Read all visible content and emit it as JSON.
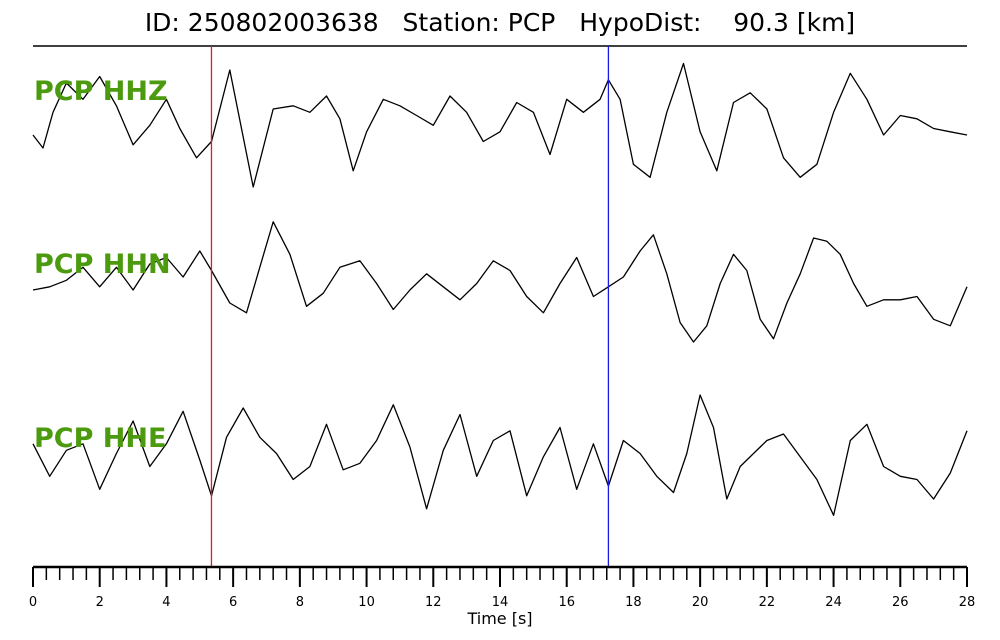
{
  "title": {
    "id": "ID: 250802003638",
    "station": "Station: PCP",
    "hypodist": "HypoDist:    90.3 [km]"
  },
  "chart_data": {
    "type": "line",
    "title": "ID: 250802003638   Station: PCP   HypoDist:    90.3 [km]",
    "xlabel": "Time [s]",
    "ylabel": "",
    "xlim": [
      0,
      28
    ],
    "x_ticks": [
      0,
      2,
      4,
      6,
      8,
      10,
      12,
      14,
      16,
      18,
      20,
      22,
      24,
      26,
      28
    ],
    "minor_tick_step": 0.4,
    "grid": false,
    "label_color": "#4c9a0e",
    "markers": [
      {
        "time": 5.35,
        "color": "#e31a1c"
      },
      {
        "time": 17.25,
        "color": "#1a1ae3"
      }
    ],
    "series": [
      {
        "name": "PCP HHZ",
        "x": [
          0,
          0.3,
          0.6,
          1.0,
          1.5,
          2.0,
          2.5,
          3.0,
          3.5,
          4.0,
          4.4,
          4.9,
          5.35,
          5.9,
          6.6,
          7.2,
          7.8,
          8.3,
          8.8,
          9.2,
          9.6,
          10.0,
          10.5,
          11.0,
          11.5,
          12.0,
          12.5,
          13.0,
          13.5,
          14.0,
          14.5,
          15.0,
          15.5,
          16.0,
          16.5,
          17.0,
          17.25,
          17.6,
          18.0,
          18.5,
          19.0,
          19.5,
          20.0,
          20.5,
          21.0,
          21.5,
          22.0,
          22.5,
          23.0,
          23.5,
          24.0,
          24.5,
          25.0,
          25.5,
          26.0,
          26.5,
          27.0,
          27.5,
          28.0
        ],
        "y": [
          0.0,
          -0.2,
          0.35,
          0.8,
          0.55,
          0.9,
          0.45,
          -0.15,
          0.15,
          0.55,
          0.1,
          -0.35,
          -0.1,
          1.0,
          -0.8,
          0.4,
          0.45,
          0.35,
          0.6,
          0.25,
          -0.55,
          0.05,
          0.55,
          0.45,
          0.3,
          0.15,
          0.6,
          0.35,
          -0.1,
          0.05,
          0.5,
          0.35,
          -0.3,
          0.55,
          0.35,
          0.55,
          0.85,
          0.55,
          -0.45,
          -0.65,
          0.35,
          1.1,
          0.05,
          -0.55,
          0.5,
          0.65,
          0.4,
          -0.35,
          -0.65,
          -0.45,
          0.35,
          0.95,
          0.55,
          0.0,
          0.3,
          0.25,
          0.1,
          0.05,
          0.0
        ]
      },
      {
        "name": "PCP HHN",
        "x": [
          0,
          0.5,
          1.0,
          1.5,
          2.0,
          2.5,
          3.0,
          3.5,
          4.0,
          4.5,
          5.0,
          5.35,
          5.9,
          6.4,
          6.8,
          7.2,
          7.7,
          8.2,
          8.7,
          9.2,
          9.8,
          10.3,
          10.8,
          11.3,
          11.8,
          12.3,
          12.8,
          13.3,
          13.8,
          14.3,
          14.8,
          15.3,
          15.8,
          16.3,
          16.8,
          17.25,
          17.7,
          18.2,
          18.6,
          19.0,
          19.4,
          19.8,
          20.2,
          20.6,
          21.0,
          21.4,
          21.8,
          22.2,
          22.6,
          23.0,
          23.4,
          23.8,
          24.2,
          24.6,
          25.0,
          25.5,
          26.0,
          26.5,
          27.0,
          27.5,
          28.0
        ],
        "y": [
          0.0,
          0.05,
          0.15,
          0.35,
          0.05,
          0.35,
          0.0,
          0.4,
          0.5,
          0.2,
          0.6,
          0.3,
          -0.2,
          -0.35,
          0.35,
          1.05,
          0.55,
          -0.25,
          -0.05,
          0.35,
          0.45,
          0.1,
          -0.3,
          0.0,
          0.25,
          0.05,
          -0.15,
          0.1,
          0.45,
          0.3,
          -0.1,
          -0.35,
          0.1,
          0.5,
          -0.1,
          0.05,
          0.2,
          0.6,
          0.85,
          0.25,
          -0.5,
          -0.8,
          -0.55,
          0.1,
          0.55,
          0.3,
          -0.45,
          -0.75,
          -0.2,
          0.25,
          0.8,
          0.75,
          0.55,
          0.1,
          -0.25,
          -0.15,
          -0.15,
          -0.1,
          -0.45,
          -0.55,
          0.05
        ]
      },
      {
        "name": "PCP HHE",
        "x": [
          0,
          0.5,
          1.0,
          1.5,
          2.0,
          2.5,
          3.0,
          3.5,
          4.0,
          4.5,
          5.0,
          5.35,
          5.8,
          6.3,
          6.8,
          7.3,
          7.8,
          8.3,
          8.8,
          9.3,
          9.8,
          10.3,
          10.8,
          11.3,
          11.8,
          12.3,
          12.8,
          13.3,
          13.8,
          14.3,
          14.8,
          15.3,
          15.8,
          16.3,
          16.8,
          17.25,
          17.7,
          18.2,
          18.7,
          19.2,
          19.6,
          20.0,
          20.4,
          20.8,
          21.2,
          21.6,
          22.0,
          22.5,
          23.0,
          23.5,
          24.0,
          24.5,
          25.0,
          25.5,
          26.0,
          26.5,
          27.0,
          27.5,
          28.0
        ],
        "y": [
          0.25,
          -0.25,
          0.15,
          0.25,
          -0.45,
          0.1,
          0.6,
          -0.1,
          0.25,
          0.75,
          0.0,
          -0.55,
          0.35,
          0.8,
          0.35,
          0.1,
          -0.3,
          -0.1,
          0.55,
          -0.15,
          -0.05,
          0.3,
          0.85,
          0.2,
          -0.75,
          0.15,
          0.7,
          -0.25,
          0.3,
          0.45,
          -0.55,
          0.05,
          0.5,
          -0.45,
          0.25,
          -0.4,
          0.3,
          0.1,
          -0.25,
          -0.5,
          0.1,
          1.0,
          0.5,
          -0.6,
          -0.1,
          0.1,
          0.3,
          0.4,
          0.05,
          -0.3,
          -0.85,
          0.3,
          0.55,
          -0.1,
          -0.25,
          -0.3,
          -0.6,
          -0.2,
          0.45
        ]
      }
    ]
  }
}
